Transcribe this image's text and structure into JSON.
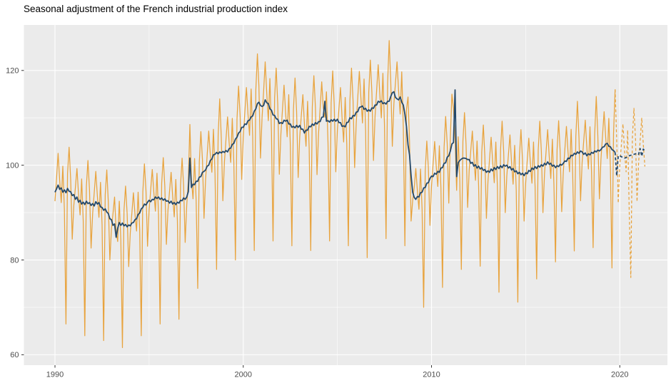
{
  "chart_data": {
    "type": "line",
    "title": "Seasonal adjustment of the French industrial production index",
    "xlabel": "",
    "ylabel": "",
    "legend": "none",
    "x_ticks": [
      1990,
      2000,
      2010,
      2020
    ],
    "x_minor_ticks": [
      1995,
      2005,
      2015
    ],
    "y_ticks": [
      60,
      80,
      100,
      120
    ],
    "y_minor_ticks": [
      70,
      90,
      110
    ],
    "x_domain": [
      1988.35,
      2022.53
    ],
    "y_domain": [
      57.8,
      129.6
    ],
    "grid": "on",
    "panel_background": "#EBEBEB",
    "grid_major_color": "#FFFFFF",
    "grid_minor_color": "#FFFFFF",
    "axis_text_color": "#4D4D4D",
    "tick_mark_color": "#333333",
    "forecast_from": {
      "year": 2019,
      "month": 11,
      "style": "dashed"
    },
    "series": [
      {
        "name": "raw",
        "color": "#E8A33D",
        "width": 1.25,
        "monthly": {
          "1990": [
            92.4,
            97.2,
            102.5,
            96.8,
            92.1,
            99.8,
            90.6,
            66.5,
            98.2,
            103.8,
            97.0,
            84.4
          ],
          "1991": [
            91.5,
            95.3,
            99.3,
            93.9,
            89.5,
            97.1,
            88.2,
            64.0,
            95.5,
            101.0,
            94.7,
            82.5
          ],
          "1992": [
            89.8,
            94.2,
            98.7,
            93.5,
            89.0,
            96.4,
            87.4,
            63.0,
            93.8,
            99.0,
            92.3,
            80.0
          ],
          "1993": [
            86.5,
            89.8,
            93.3,
            86.1,
            83.9,
            92.4,
            84.2,
            61.5,
            90.5,
            95.6,
            89.8,
            78.6
          ],
          "1994": [
            85.7,
            89.8,
            94.2,
            89.6,
            86.1,
            94.3,
            86.4,
            64.0,
            94.4,
            100.3,
            94.6,
            82.9
          ],
          "1995": [
            90.6,
            94.8,
            99.1,
            94.3,
            90.3,
            98.3,
            89.4,
            66.5,
            96.2,
            101.6,
            95.5,
            83.3
          ],
          "1996": [
            90.5,
            94.5,
            98.5,
            93.4,
            89.1,
            97.0,
            88.3,
            67.5,
            95.7,
            101.5,
            95.7,
            83.7
          ],
          "1997": [
            91.6,
            96.6,
            108.6,
            96.9,
            92.9,
            101.4,
            92.5,
            74.0,
            100.7,
            107.1,
            101.2,
            88.8
          ],
          "1998": [
            97.0,
            102.1,
            107.2,
            102.3,
            98.5,
            107.6,
            98.3,
            78.0,
            106.2,
            114.0,
            105.8,
            92.5
          ],
          "1999": [
            100.7,
            105.5,
            110.2,
            104.8,
            100.6,
            109.9,
            100.5,
            80.0,
            109.7,
            116.7,
            110.4,
            97.0
          ],
          "2000": [
            106.0,
            111.2,
            116.4,
            110.8,
            106.3,
            116.1,
            106.1,
            82.0,
            115.9,
            123.5,
            116.7,
            101.5
          ],
          "2001": [
            110.0,
            115.6,
            121.8,
            115.1,
            109.4,
            118.3,
            106.9,
            84.0,
            114.2,
            120.5,
            112.8,
            98.1
          ],
          "2002": [
            106.6,
            111.7,
            116.9,
            111.1,
            106.0,
            114.9,
            104.2,
            83.0,
            111.8,
            118.4,
            111.4,
            97.4
          ],
          "2003": [
            106.0,
            110.5,
            114.9,
            108.6,
            104.0,
            113.5,
            103.7,
            82.0,
            112.3,
            118.9,
            112.1,
            98.0
          ],
          "2004": [
            106.8,
            112.1,
            117.6,
            112.1,
            110.1,
            115.5,
            104.8,
            84.0,
            113.2,
            119.9,
            112.8,
            98.6
          ],
          "2005": [
            107.3,
            111.9,
            116.4,
            110.0,
            104.9,
            114.3,
            104.4,
            83.0,
            113.6,
            120.5,
            113.6,
            99.5
          ],
          "2006": [
            108.8,
            114.3,
            119.8,
            114.2,
            108.9,
            118.2,
            107.3,
            80.5,
            115.4,
            122.2,
            115.3,
            101.0
          ],
          "2007": [
            110.3,
            115.7,
            121.2,
            115.2,
            110.0,
            119.4,
            108.5,
            84.5,
            117.3,
            126.3,
            117.7,
            104.0
          ],
          "2008": [
            113.0,
            117.4,
            121.8,
            115.7,
            110.8,
            119.7,
            108.0,
            83.0,
            111.8,
            114.4,
            105.1,
            88.2
          ],
          "2009": [
            92.6,
            95.3,
            99.3,
            94.6,
            90.7,
            99.2,
            90.7,
            70.0,
            98.8,
            105.1,
            99.4,
            87.3
          ],
          "2010": [
            95.6,
            100.2,
            105.0,
            99.8,
            95.5,
            104.1,
            95.2,
            74.2,
            103.7,
            110.3,
            104.5,
            92.0
          ],
          "2011": [
            106.0,
            115.0,
            112.0,
            105.6,
            94.7,
            106.0,
            97.0,
            78.0,
            105.1,
            111.1,
            104.4,
            91.1
          ],
          "2012": [
            99.0,
            103.1,
            107.2,
            101.5,
            96.8,
            105.1,
            95.5,
            78.7,
            102.8,
            108.5,
            101.9,
            88.8
          ],
          "2013": [
            96.6,
            101.3,
            105.9,
            100.7,
            96.3,
            104.9,
            95.5,
            73.2,
            103.2,
            109.3,
            102.9,
            90.0
          ],
          "2014": [
            97.8,
            102.1,
            106.4,
            100.7,
            96.0,
            104.2,
            94.7,
            71.1,
            101.7,
            107.5,
            101.0,
            88.2
          ],
          "2015": [
            96.2,
            101.0,
            105.7,
            100.5,
            96.2,
            104.9,
            95.5,
            76.0,
            103.2,
            109.3,
            102.9,
            90.0
          ],
          "2016": [
            98.2,
            102.9,
            107.5,
            101.9,
            97.2,
            105.5,
            95.8,
            79.6,
            103.3,
            109.4,
            103.0,
            90.2
          ],
          "2017": [
            98.5,
            103.3,
            108.2,
            102.9,
            98.6,
            107.6,
            98.1,
            81.9,
            106.1,
            113.5,
            105.8,
            92.5
          ],
          "2018": [
            100.6,
            105.1,
            109.5,
            103.7,
            99.2,
            108.1,
            98.5,
            82.6,
            106.5,
            114.5,
            106.2,
            92.9
          ],
          "2019": [
            101.3,
            106.3,
            111.3,
            105.9,
            101.4,
            109.9,
            99.6,
            78.3,
            106.6,
            116.0,
            105.5,
            92.0
          ],
          "2020": [
            100.0,
            104.4,
            108.7,
            103.0,
            98.6,
            107.4,
            90.0,
            76.3,
            105.8,
            112.0,
            105.5,
            92.3
          ],
          "2021": [
            100.5,
            105.2,
            110.0,
            104.4,
            99.7
          ]
        }
      },
      {
        "name": "seasonally_adjusted",
        "color": "#24496B",
        "width": 1.8,
        "monthly": {
          "1990": [
            94.3,
            95.0,
            95.8,
            94.9,
            95.2,
            94.3,
            94.8,
            94.2,
            95.1,
            94.5,
            94.4,
            93.6
          ],
          "1991": [
            93.8,
            92.8,
            93.3,
            92.2,
            92.6,
            91.8,
            92.2,
            91.7,
            92.4,
            91.9,
            92.1,
            91.5
          ],
          "1992": [
            91.9,
            91.4,
            92.3,
            91.8,
            92.1,
            91.2,
            91.1,
            90.5,
            90.8,
            90.1,
            89.8,
            88.7
          ],
          "1993": [
            88.5,
            87.3,
            87.6,
            84.8,
            86.7,
            87.9,
            87.3,
            87.8,
            87.2,
            87.5,
            87.0,
            87.4
          ],
          "1994": [
            87.2,
            87.8,
            87.9,
            88.5,
            88.7,
            89.6,
            89.9,
            90.8,
            91.1,
            91.8,
            91.6,
            92.2
          ],
          "1995": [
            92.6,
            92.3,
            92.8,
            92.7,
            93.3,
            93.0,
            93.3,
            92.8,
            93.1,
            92.6,
            92.9,
            92.4
          ],
          "1996": [
            92.5,
            92.0,
            92.4,
            91.8,
            92.1,
            91.7,
            92.2,
            92.0,
            92.6,
            92.5,
            93.1,
            92.8
          ],
          "1997": [
            93.3,
            94.4,
            101.5,
            95.3,
            96.0,
            95.9,
            96.6,
            96.6,
            97.5,
            97.6,
            98.5,
            98.7
          ],
          "1998": [
            99.0,
            99.8,
            100.0,
            101.0,
            101.3,
            102.2,
            102.3,
            102.7,
            102.4,
            102.8,
            102.6,
            102.9
          ],
          "1999": [
            102.7,
            103.1,
            102.8,
            103.5,
            103.6,
            104.4,
            104.6,
            105.5,
            105.9,
            106.8,
            107.1,
            108.0
          ],
          "2000": [
            108.0,
            108.7,
            108.6,
            109.4,
            109.5,
            110.2,
            110.4,
            111.4,
            111.9,
            113.0,
            113.3,
            112.6
          ],
          "2001": [
            112.4,
            112.6,
            113.8,
            113.2,
            113.0,
            111.9,
            111.6,
            110.6,
            110.5,
            109.8,
            109.7,
            108.8
          ],
          "2002": [
            109.0,
            108.8,
            109.5,
            109.3,
            109.5,
            108.7,
            108.7,
            108.0,
            108.2,
            107.9,
            108.4,
            108.0
          ],
          "2003": [
            108.4,
            107.6,
            107.6,
            106.8,
            107.4,
            107.4,
            108.2,
            108.1,
            108.7,
            108.4,
            109.0,
            108.7
          ],
          "2004": [
            109.2,
            109.2,
            110.1,
            110.2,
            113.5,
            109.3,
            109.4,
            109.1,
            109.6,
            109.3,
            109.7,
            109.3
          ],
          "2005": [
            109.7,
            109.0,
            109.0,
            108.2,
            108.3,
            108.1,
            109.0,
            109.1,
            110.0,
            109.8,
            110.5,
            110.4
          ],
          "2006": [
            111.2,
            111.3,
            112.2,
            112.3,
            112.5,
            111.8,
            112.0,
            111.4,
            111.7,
            111.4,
            112.1,
            112.0
          ],
          "2007": [
            112.7,
            112.7,
            113.5,
            113.3,
            113.6,
            113.0,
            113.2,
            112.9,
            113.5,
            113.5,
            114.5,
            115.3
          ],
          "2008": [
            115.5,
            114.3,
            114.0,
            113.8,
            114.4,
            113.3,
            112.7,
            110.8,
            108.2,
            104.3,
            102.2,
            97.8
          ],
          "2009": [
            94.3,
            93.2,
            92.8,
            93.4,
            93.3,
            94.2,
            94.3,
            95.2,
            95.3,
            96.2,
            96.3,
            97.2
          ],
          "2010": [
            97.7,
            97.6,
            98.3,
            98.1,
            98.7,
            98.5,
            99.4,
            99.5,
            100.4,
            100.5,
            101.7,
            102.0
          ],
          "2011": [
            103.0,
            104.5,
            104.8,
            115.9,
            97.6,
            100.5,
            101.0,
            101.3,
            101.5,
            101.5,
            101.4,
            101.2
          ],
          "2012": [
            101.2,
            100.4,
            100.6,
            99.8,
            100.1,
            99.4,
            99.8,
            99.2,
            99.5,
            98.9,
            99.1,
            98.5
          ],
          "2013": [
            98.8,
            98.5,
            99.2,
            98.8,
            99.5,
            99.1,
            99.7,
            99.3,
            99.9,
            99.5,
            100.1,
            99.8
          ],
          "2014": [
            100.0,
            99.4,
            99.7,
            99.0,
            99.3,
            98.6,
            98.8,
            98.2,
            98.5,
            98.0,
            98.3,
            97.8
          ],
          "2015": [
            98.4,
            98.2,
            98.9,
            98.7,
            99.4,
            99.1,
            99.7,
            99.3,
            99.9,
            99.6,
            100.1,
            99.8
          ],
          "2016": [
            100.4,
            100.1,
            100.7,
            100.2,
            100.4,
            99.8,
            100.0,
            99.5,
            99.9,
            99.7,
            100.2,
            100.0
          ],
          "2017": [
            100.4,
            100.9,
            100.8,
            101.5,
            101.4,
            102.1,
            102.0,
            102.5,
            102.3,
            102.8,
            102.5,
            103.0
          ],
          "2018": [
            102.8,
            102.3,
            102.6,
            102.0,
            102.4,
            102.2,
            102.7,
            102.5,
            103.0,
            102.8,
            103.2,
            103.0
          ],
          "2019": [
            103.3,
            103.8,
            103.9,
            104.5,
            104.6,
            104.0,
            103.9,
            103.3,
            103.1,
            102.7,
            97.8,
            102.0
          ],
          "2020": [
            102.0,
            101.8,
            101.6,
            101.5,
            101.6,
            101.8,
            102.0,
            102.1,
            102.2,
            102.3,
            102.4,
            102.5
          ],
          "2021": [
            102.3,
            103.5,
            101.9,
            103.4,
            103.0
          ]
        }
      }
    ]
  }
}
